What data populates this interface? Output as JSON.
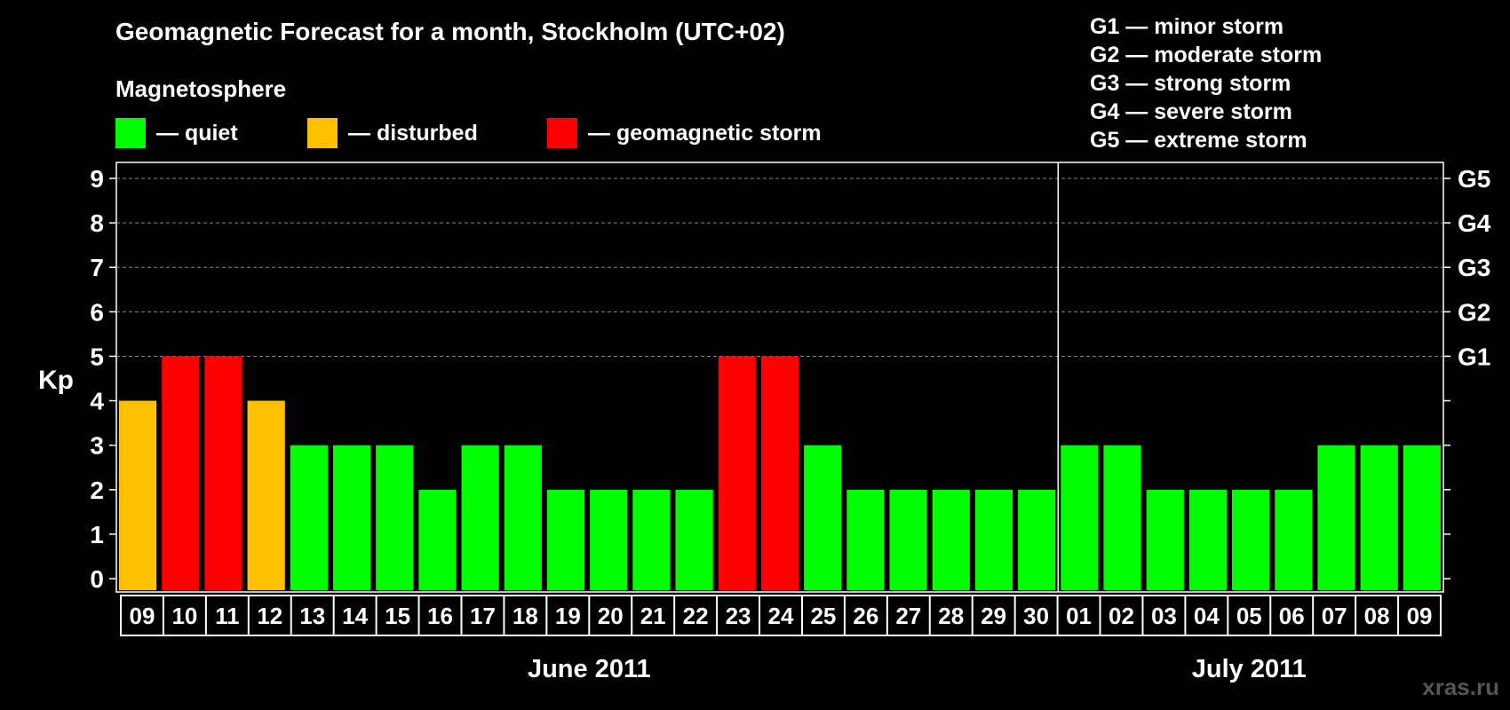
{
  "title": "Geomagnetic Forecast for a month, Stockholm (UTC+02)",
  "magnetosphere": {
    "title": "Magnetosphere",
    "legend": [
      {
        "label": "— quiet",
        "color": "#00ff00"
      },
      {
        "label": "— disturbed",
        "color": "#ffc000"
      },
      {
        "label": "— geomagnetic storm",
        "color": "#ff0000"
      }
    ]
  },
  "storm_legend": [
    "G1 — minor storm",
    "G2 — moderate storm",
    "G3 — strong storm",
    "G4 — severe storm",
    "G5 — extreme storm"
  ],
  "watermark": "xras.ru",
  "chart_data": {
    "type": "bar",
    "ylabel": "Kp",
    "ylim": [
      0,
      9
    ],
    "yticks": [
      "0",
      "1",
      "2",
      "3",
      "4",
      "5",
      "6",
      "7",
      "8",
      "9"
    ],
    "right_axis_labels": [
      {
        "kp": 5,
        "label": "G1"
      },
      {
        "kp": 6,
        "label": "G2"
      },
      {
        "kp": 7,
        "label": "G3"
      },
      {
        "kp": 8,
        "label": "G4"
      },
      {
        "kp": 9,
        "label": "G5"
      }
    ],
    "grid": "dashed horizontal at 5-9",
    "categories": [
      "09",
      "10",
      "11",
      "12",
      "13",
      "14",
      "15",
      "16",
      "17",
      "18",
      "19",
      "20",
      "21",
      "22",
      "23",
      "24",
      "25",
      "26",
      "27",
      "28",
      "29",
      "30",
      "01",
      "02",
      "03",
      "04",
      "05",
      "06",
      "07",
      "08",
      "09"
    ],
    "values": [
      4,
      5,
      5,
      4,
      3,
      3,
      3,
      2,
      3,
      3,
      2,
      2,
      2,
      2,
      5,
      5,
      3,
      2,
      2,
      2,
      2,
      2,
      3,
      3,
      2,
      2,
      2,
      2,
      3,
      3,
      3
    ],
    "status": [
      "disturbed",
      "storm",
      "storm",
      "disturbed",
      "quiet",
      "quiet",
      "quiet",
      "quiet",
      "quiet",
      "quiet",
      "quiet",
      "quiet",
      "quiet",
      "quiet",
      "storm",
      "storm",
      "quiet",
      "quiet",
      "quiet",
      "quiet",
      "quiet",
      "quiet",
      "quiet",
      "quiet",
      "quiet",
      "quiet",
      "quiet",
      "quiet",
      "quiet",
      "quiet",
      "quiet"
    ],
    "status_colors": {
      "quiet": "#00ff00",
      "disturbed": "#ffc000",
      "storm": "#ff0000"
    },
    "months": [
      {
        "label": "June 2011",
        "count": 22
      },
      {
        "label": "July 2011",
        "count": 9
      }
    ]
  }
}
